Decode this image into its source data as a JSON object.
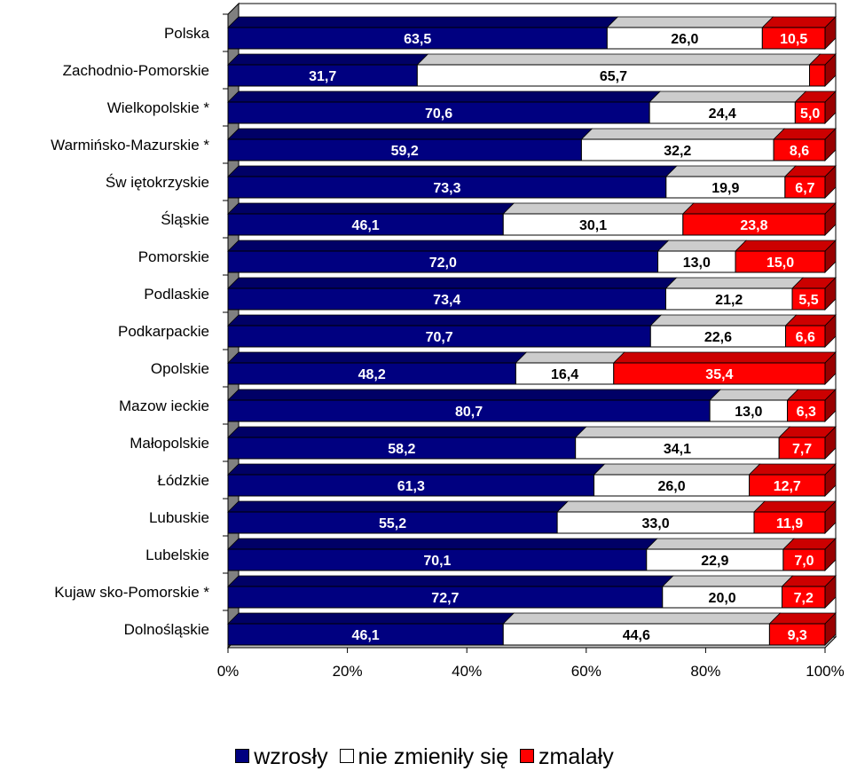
{
  "chart_data": {
    "type": "bar",
    "orientation": "horizontal",
    "stacked": "percent",
    "categories": [
      "Polska",
      "Zachodnio-Pomorskie",
      "Wielkopolskie *",
      "Warmińsko-Mazurskie *",
      "Św iętokrzyskie",
      "Śląskie",
      "Pomorskie",
      "Podlaskie",
      "Podkarpackie",
      "Opolskie",
      "Mazow ieckie",
      "Małopolskie",
      "Łódzkie",
      "Lubuskie",
      "Lubelskie",
      "Kujaw sko-Pomorskie *",
      "Dolnośląskie"
    ],
    "series": [
      {
        "name": "wzrosły",
        "color": "#000080",
        "values": [
          63.5,
          31.7,
          70.6,
          59.2,
          73.3,
          46.1,
          72.0,
          73.4,
          70.7,
          48.2,
          80.7,
          58.2,
          61.3,
          55.2,
          70.1,
          72.7,
          46.1
        ],
        "labels": [
          "63,5",
          "31,7",
          "70,6",
          "59,2",
          "73,3",
          "46,1",
          "72,0",
          "73,4",
          "70,7",
          "48,2",
          "80,7",
          "58,2",
          "61,3",
          "55,2",
          "70,1",
          "72,7",
          "46,1"
        ]
      },
      {
        "name": "nie zmieniły się",
        "color": "#ffffff",
        "values": [
          26.0,
          65.7,
          24.4,
          32.2,
          19.9,
          30.1,
          13.0,
          21.2,
          22.6,
          16.4,
          13.0,
          34.1,
          26.0,
          33.0,
          22.9,
          20.0,
          44.6
        ],
        "labels": [
          "26,0",
          "65,7",
          "24,4",
          "32,2",
          "19,9",
          "30,1",
          "13,0",
          "21,2",
          "22,6",
          "16,4",
          "13,0",
          "34,1",
          "26,0",
          "33,0",
          "22,9",
          "20,0",
          "44,6"
        ]
      },
      {
        "name": "zmalały",
        "color": "#ff0000",
        "values": [
          10.5,
          2.6,
          5.0,
          8.6,
          6.7,
          23.8,
          15.0,
          5.5,
          6.6,
          35.4,
          6.3,
          7.7,
          12.7,
          11.9,
          7.0,
          7.2,
          9.3
        ],
        "labels": [
          "10,5",
          "",
          "5,0",
          "8,6",
          "6,7",
          "23,8",
          "15,0",
          "5,5",
          "6,6",
          "35,4",
          "6,3",
          "7,7",
          "12,7",
          "11,9",
          "7,0",
          "7,2",
          "9,3"
        ]
      }
    ],
    "x_ticks": [
      "0%",
      "20%",
      "40%",
      "60%",
      "80%",
      "100%"
    ],
    "xlim": [
      0,
      100
    ],
    "legend_position": "bottom",
    "grid": false,
    "three_d": true
  }
}
